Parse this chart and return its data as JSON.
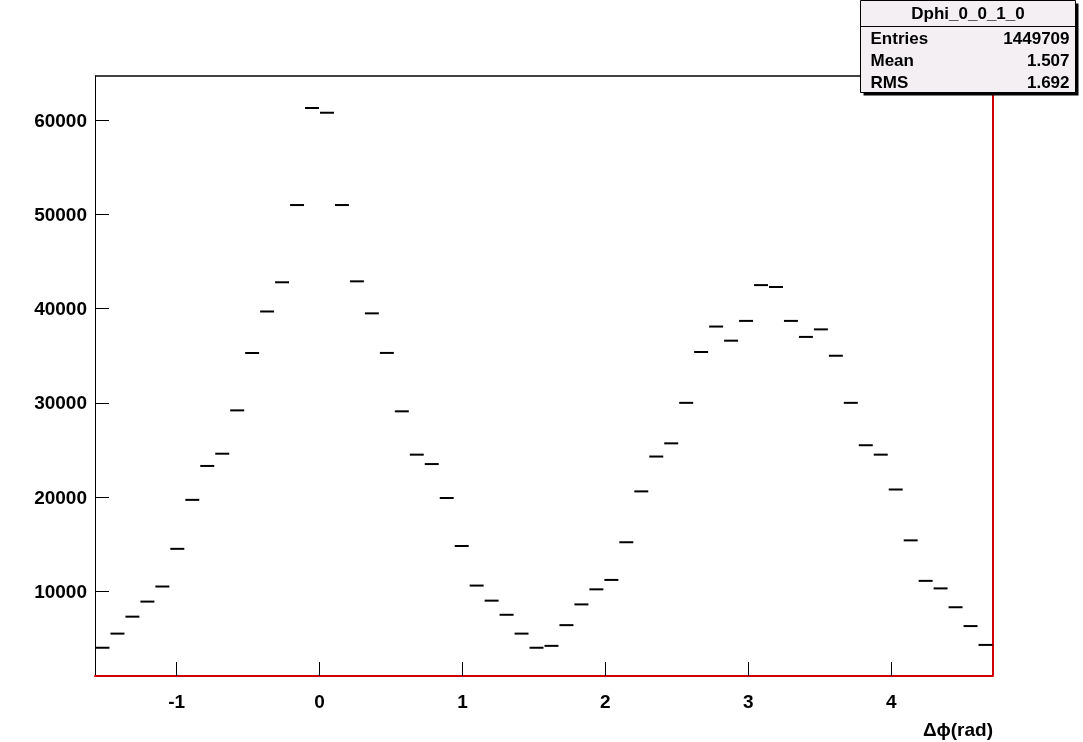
{
  "chart_data": {
    "type": "histogram",
    "xlabel": "Δϕ(rad)",
    "bins": [
      -1.5708,
      -1.4661,
      -1.3614,
      -1.2566,
      -1.1519,
      -1.0472,
      -0.9425,
      -0.8378,
      -0.733,
      -0.6283,
      -0.5236,
      -0.4189,
      -0.3142,
      -0.2094,
      -0.1047,
      0,
      0.1047,
      0.2094,
      0.3142,
      0.4189,
      0.5236,
      0.6283,
      0.733,
      0.8378,
      0.9425,
      1.0472,
      1.1519,
      1.2566,
      1.3614,
      1.4661,
      1.5708,
      1.6755,
      1.7802,
      1.885,
      1.9897,
      2.0944,
      2.1991,
      2.3038,
      2.4086,
      2.5133,
      2.618,
      2.7227,
      2.8274,
      2.9322,
      3.0369,
      3.1416,
      3.2463,
      3.351,
      3.4558,
      3.5605,
      3.6652,
      3.7699,
      3.8746,
      3.9794,
      4.0841,
      4.1888,
      4.2935,
      4.3982,
      4.5029,
      4.6077,
      4.7124
    ],
    "values": [
      4000,
      5500,
      7300,
      8900,
      10500,
      14500,
      19700,
      23300,
      24600,
      29200,
      35300,
      39700,
      42800,
      51000,
      61300,
      60800,
      51000,
      42900,
      39500,
      35300,
      29100,
      24500,
      23500,
      19900,
      14800,
      10600,
      9000,
      7500,
      5500,
      4000,
      4200,
      6400,
      8600,
      10200,
      11200,
      15200,
      20600,
      24300,
      25700,
      30000,
      35400,
      38100,
      36600,
      38700,
      42500,
      42300,
      38700,
      37000,
      37800,
      35000,
      30000,
      25500,
      24500,
      20800,
      15400,
      11100,
      10300,
      8300,
      6300,
      4300
    ],
    "color": "#000000",
    "xlim": [
      -1.5708,
      4.7124
    ],
    "xticks": [
      -1,
      0,
      1,
      2,
      3,
      4
    ],
    "ylim": [
      1000,
      64700
    ],
    "yticks": [
      10000,
      20000,
      30000,
      40000,
      50000,
      60000
    ],
    "grid": false,
    "annotations": [
      "Dphi_0_0_1_0",
      "Entries",
      "1449709",
      "Mean",
      "1.507",
      "RMS",
      "1.692"
    ]
  }
}
